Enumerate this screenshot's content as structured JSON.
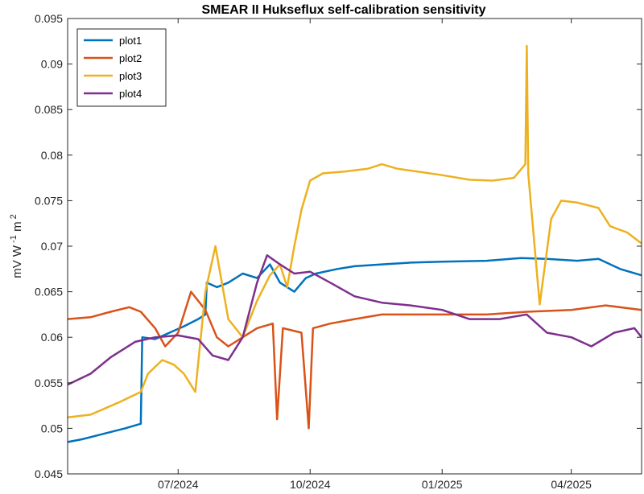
{
  "chart_data": {
    "type": "line",
    "title": "SMEAR II Hukseflux self-calibration sensitivity",
    "ylabel": "mV W -1 m 2",
    "xlabel": "",
    "x_range": [
      "2024-04-15",
      "2025-05-20"
    ],
    "ylim": [
      0.045,
      0.095
    ],
    "yticks": [
      "0.045",
      "0.05",
      "0.055",
      "0.06",
      "0.065",
      "0.07",
      "0.075",
      "0.08",
      "0.085",
      "0.09",
      "0.095"
    ],
    "xticks": [
      {
        "date": "2024-07-01",
        "label": "07/2024"
      },
      {
        "date": "2024-10-01",
        "label": "10/2024"
      },
      {
        "date": "2025-01-01",
        "label": "01/2025"
      },
      {
        "date": "2025-04-01",
        "label": "04/2025"
      }
    ],
    "grid": false,
    "legend_position": "top-left",
    "series": [
      {
        "name": "plot1",
        "color": "#0072BD",
        "points": [
          [
            "2024-04-15",
            0.0485
          ],
          [
            "2024-04-25",
            0.0488
          ],
          [
            "2024-05-10",
            0.0494
          ],
          [
            "2024-05-25",
            0.05
          ],
          [
            "2024-06-05",
            0.0505
          ],
          [
            "2024-06-06",
            0.06
          ],
          [
            "2024-06-15",
            0.0598
          ],
          [
            "2024-06-25",
            0.0605
          ],
          [
            "2024-07-05",
            0.0612
          ],
          [
            "2024-07-15",
            0.062
          ],
          [
            "2024-07-20",
            0.0625
          ],
          [
            "2024-07-21",
            0.066
          ],
          [
            "2024-07-28",
            0.0655
          ],
          [
            "2024-08-05",
            0.066
          ],
          [
            "2024-08-15",
            0.067
          ],
          [
            "2024-08-25",
            0.0665
          ],
          [
            "2024-09-03",
            0.068
          ],
          [
            "2024-09-10",
            0.066
          ],
          [
            "2024-09-20",
            0.065
          ],
          [
            "2024-09-28",
            0.0665
          ],
          [
            "2024-10-05",
            0.067
          ],
          [
            "2024-10-20",
            0.0675
          ],
          [
            "2024-11-01",
            0.0678
          ],
          [
            "2024-11-20",
            0.068
          ],
          [
            "2024-12-10",
            0.0682
          ],
          [
            "2025-01-01",
            0.0683
          ],
          [
            "2025-02-01",
            0.0684
          ],
          [
            "2025-02-25",
            0.0687
          ],
          [
            "2025-03-15",
            0.0686
          ],
          [
            "2025-04-05",
            0.0684
          ],
          [
            "2025-04-20",
            0.0686
          ],
          [
            "2025-05-05",
            0.0675
          ],
          [
            "2025-05-20",
            0.0668
          ]
        ]
      },
      {
        "name": "plot2",
        "color": "#D95319",
        "points": [
          [
            "2024-04-15",
            0.062
          ],
          [
            "2024-05-01",
            0.0622
          ],
          [
            "2024-05-15",
            0.0628
          ],
          [
            "2024-05-28",
            0.0633
          ],
          [
            "2024-06-05",
            0.0628
          ],
          [
            "2024-06-15",
            0.061
          ],
          [
            "2024-06-22",
            0.059
          ],
          [
            "2024-07-01",
            0.0605
          ],
          [
            "2024-07-10",
            0.065
          ],
          [
            "2024-07-20",
            0.063
          ],
          [
            "2024-07-28",
            0.06
          ],
          [
            "2024-08-05",
            0.059
          ],
          [
            "2024-08-15",
            0.06
          ],
          [
            "2024-08-25",
            0.061
          ],
          [
            "2024-09-05",
            0.0615
          ],
          [
            "2024-09-08",
            0.051
          ],
          [
            "2024-09-12",
            0.061
          ],
          [
            "2024-09-25",
            0.0605
          ],
          [
            "2024-09-30",
            0.05
          ],
          [
            "2024-10-03",
            0.061
          ],
          [
            "2024-10-15",
            0.0615
          ],
          [
            "2024-11-01",
            0.062
          ],
          [
            "2024-11-20",
            0.0625
          ],
          [
            "2024-12-10",
            0.0625
          ],
          [
            "2025-01-01",
            0.0625
          ],
          [
            "2025-02-01",
            0.0625
          ],
          [
            "2025-03-01",
            0.0628
          ],
          [
            "2025-04-01",
            0.063
          ],
          [
            "2025-04-25",
            0.0635
          ],
          [
            "2025-05-10",
            0.0632
          ],
          [
            "2025-05-20",
            0.063
          ]
        ]
      },
      {
        "name": "plot3",
        "color": "#EDB120",
        "points": [
          [
            "2024-04-15",
            0.0512
          ],
          [
            "2024-05-01",
            0.0515
          ],
          [
            "2024-05-20",
            0.0528
          ],
          [
            "2024-06-05",
            0.054
          ],
          [
            "2024-06-10",
            0.056
          ],
          [
            "2024-06-20",
            0.0575
          ],
          [
            "2024-06-28",
            0.057
          ],
          [
            "2024-07-05",
            0.056
          ],
          [
            "2024-07-13",
            0.054
          ],
          [
            "2024-07-20",
            0.065
          ],
          [
            "2024-07-27",
            0.07
          ],
          [
            "2024-08-05",
            0.062
          ],
          [
            "2024-08-15",
            0.06
          ],
          [
            "2024-08-25",
            0.064
          ],
          [
            "2024-09-03",
            0.0668
          ],
          [
            "2024-09-10",
            0.068
          ],
          [
            "2024-09-15",
            0.0655
          ],
          [
            "2024-09-20",
            0.07
          ],
          [
            "2024-09-25",
            0.074
          ],
          [
            "2024-10-01",
            0.0772
          ],
          [
            "2024-10-10",
            0.078
          ],
          [
            "2024-10-25",
            0.0782
          ],
          [
            "2024-11-10",
            0.0785
          ],
          [
            "2024-11-20",
            0.079
          ],
          [
            "2024-12-01",
            0.0785
          ],
          [
            "2024-12-15",
            0.0782
          ],
          [
            "2025-01-01",
            0.0778
          ],
          [
            "2025-01-20",
            0.0773
          ],
          [
            "2025-02-05",
            0.0772
          ],
          [
            "2025-02-20",
            0.0775
          ],
          [
            "2025-02-28",
            0.079
          ],
          [
            "2025-03-01",
            0.092
          ],
          [
            "2025-03-02",
            0.078
          ],
          [
            "2025-03-10",
            0.0636
          ],
          [
            "2025-03-18",
            0.073
          ],
          [
            "2025-03-25",
            0.075
          ],
          [
            "2025-04-05",
            0.0748
          ],
          [
            "2025-04-20",
            0.0742
          ],
          [
            "2025-04-28",
            0.0722
          ],
          [
            "2025-05-10",
            0.0715
          ],
          [
            "2025-05-20",
            0.0703
          ]
        ]
      },
      {
        "name": "plot4",
        "color": "#7E2F8E",
        "points": [
          [
            "2024-04-15",
            0.0548
          ],
          [
            "2024-05-01",
            0.056
          ],
          [
            "2024-05-15",
            0.0578
          ],
          [
            "2024-06-01",
            0.0595
          ],
          [
            "2024-06-15",
            0.06
          ],
          [
            "2024-07-01",
            0.0602
          ],
          [
            "2024-07-15",
            0.0598
          ],
          [
            "2024-07-25",
            0.058
          ],
          [
            "2024-08-05",
            0.0575
          ],
          [
            "2024-08-15",
            0.06
          ],
          [
            "2024-08-25",
            0.066
          ],
          [
            "2024-09-01",
            0.069
          ],
          [
            "2024-09-10",
            0.068
          ],
          [
            "2024-09-20",
            0.067
          ],
          [
            "2024-10-01",
            0.0672
          ],
          [
            "2024-10-15",
            0.066
          ],
          [
            "2024-11-01",
            0.0645
          ],
          [
            "2024-11-20",
            0.0638
          ],
          [
            "2024-12-10",
            0.0635
          ],
          [
            "2025-01-01",
            0.063
          ],
          [
            "2025-01-20",
            0.062
          ],
          [
            "2025-02-10",
            0.062
          ],
          [
            "2025-03-01",
            0.0625
          ],
          [
            "2025-03-15",
            0.0605
          ],
          [
            "2025-04-01",
            0.06
          ],
          [
            "2025-04-15",
            0.059
          ],
          [
            "2025-05-01",
            0.0605
          ],
          [
            "2025-05-15",
            0.061
          ],
          [
            "2025-05-20",
            0.06
          ]
        ]
      }
    ]
  }
}
